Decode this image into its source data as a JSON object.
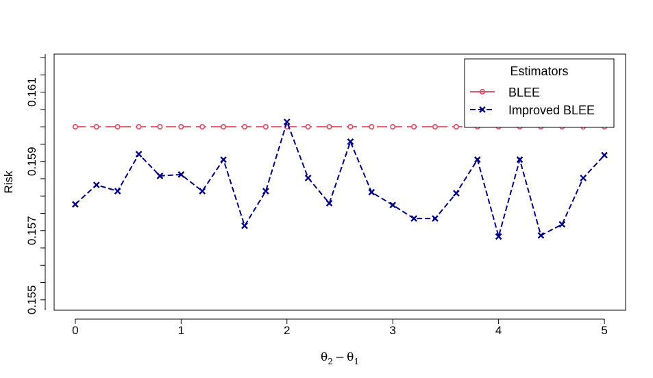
{
  "chart_data": {
    "type": "line",
    "title": "",
    "xlabel": "θ2 − θ1",
    "xlabel_parts": {
      "theta": "θ",
      "sub_a": "2",
      "minus": "−",
      "sub_b": "1"
    },
    "ylabel": "Risk",
    "xlim": [
      -0.2,
      5.2
    ],
    "ylim": [
      0.1547,
      0.1621
    ],
    "x_ticks": [
      0,
      1,
      2,
      3,
      4,
      5
    ],
    "x_tick_labels": [
      "0",
      "1",
      "2",
      "3",
      "4",
      "5"
    ],
    "y_ticks": [
      0.155,
      0.157,
      0.159,
      0.161
    ],
    "y_tick_labels": [
      "0.155",
      "0.157",
      "0.159",
      "0.161"
    ],
    "x": [
      0,
      0.2,
      0.4,
      0.6,
      0.8,
      1.0,
      1.2,
      1.4,
      1.6,
      1.8,
      2.0,
      2.2,
      2.4,
      2.6,
      2.8,
      3.0,
      3.2,
      3.4,
      3.6,
      3.8,
      4.0,
      4.2,
      4.4,
      4.6,
      4.8,
      5.0
    ],
    "series": [
      {
        "name": "BLEE",
        "color": "#DF536B",
        "line_style": "longdash",
        "marker": "circle",
        "values": [
          0.16,
          0.16,
          0.16,
          0.16,
          0.16,
          0.16,
          0.16,
          0.16,
          0.16,
          0.16,
          0.16,
          0.16,
          0.16,
          0.16,
          0.16,
          0.16,
          0.16,
          0.16,
          0.16,
          0.16,
          0.16,
          0.16,
          0.16,
          0.16,
          0.16,
          0.16
        ]
      },
      {
        "name": "Improved BLEE",
        "color": "#000080",
        "line_style": "dashed",
        "marker": "x",
        "values": [
          0.15776,
          0.15832,
          0.15814,
          0.15921,
          0.15858,
          0.15862,
          0.15814,
          0.15905,
          0.15714,
          0.15814,
          0.16014,
          0.15852,
          0.15779,
          0.15957,
          0.15811,
          0.15774,
          0.15735,
          0.15735,
          0.15808,
          0.15905,
          0.15683,
          0.15905,
          0.15686,
          0.15718,
          0.15852,
          0.15918
        ]
      }
    ],
    "legend": {
      "title": "Estimators",
      "position": "top-right",
      "entries": [
        "BLEE",
        "Improved BLEE"
      ]
    },
    "grid": false
  }
}
